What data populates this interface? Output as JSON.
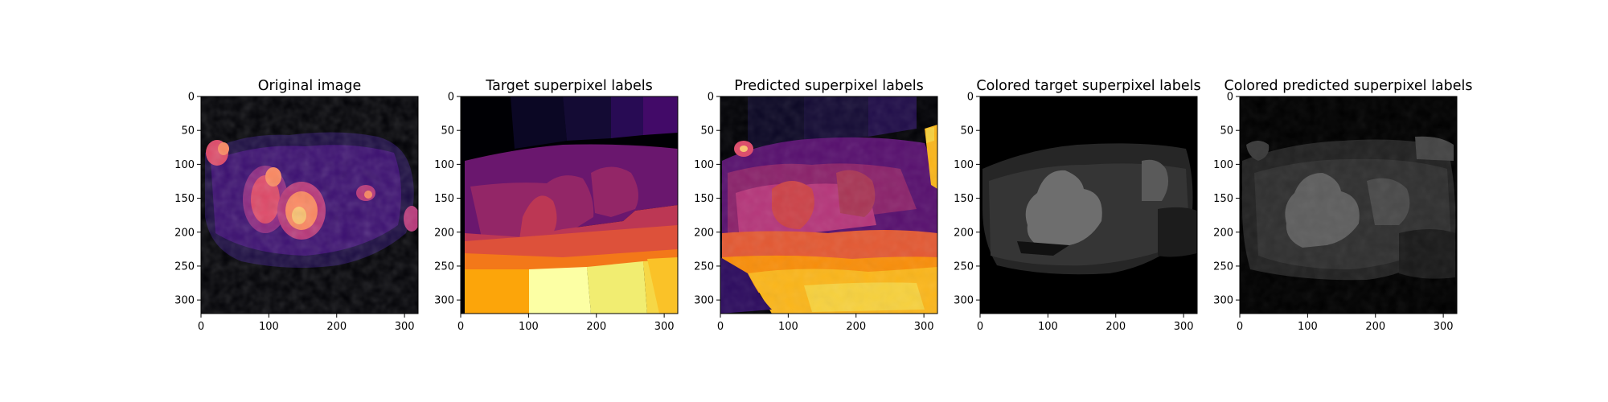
{
  "chart_data": [
    {
      "type": "heatmap",
      "title": "Original image",
      "colormap": "inferno",
      "xlim": [
        0,
        320
      ],
      "ylim": [
        320,
        0
      ],
      "x_ticks": [
        "0",
        "100",
        "200",
        "300"
      ],
      "y_ticks": [
        "0",
        "50",
        "100",
        "150",
        "200",
        "250",
        "300"
      ]
    },
    {
      "type": "heatmap",
      "title": "Target superpixel labels",
      "colormap": "inferno",
      "xlim": [
        0,
        320
      ],
      "ylim": [
        320,
        0
      ],
      "x_ticks": [
        "0",
        "100",
        "200",
        "300"
      ],
      "y_ticks": [
        "0",
        "50",
        "100",
        "150",
        "200",
        "250",
        "300"
      ]
    },
    {
      "type": "heatmap",
      "title": "Predicted superpixel labels",
      "colormap": "inferno",
      "xlim": [
        0,
        320
      ],
      "ylim": [
        320,
        0
      ],
      "x_ticks": [
        "0",
        "100",
        "200",
        "300"
      ],
      "y_ticks": [
        "0",
        "50",
        "100",
        "150",
        "200",
        "250",
        "300"
      ]
    },
    {
      "type": "heatmap",
      "title": "Colored target superpixel labels",
      "colormap": "gray",
      "xlim": [
        0,
        320
      ],
      "ylim": [
        320,
        0
      ],
      "x_ticks": [
        "0",
        "100",
        "200",
        "300"
      ],
      "y_ticks": [
        "0",
        "50",
        "100",
        "150",
        "200",
        "250",
        "300"
      ]
    },
    {
      "type": "heatmap",
      "title": "Colored predicted superpixel labels",
      "colormap": "gray",
      "xlim": [
        0,
        320
      ],
      "ylim": [
        320,
        0
      ],
      "x_ticks": [
        "0",
        "100",
        "200",
        "300"
      ],
      "y_ticks": [
        "0",
        "50",
        "100",
        "150",
        "200",
        "250",
        "300"
      ]
    }
  ]
}
